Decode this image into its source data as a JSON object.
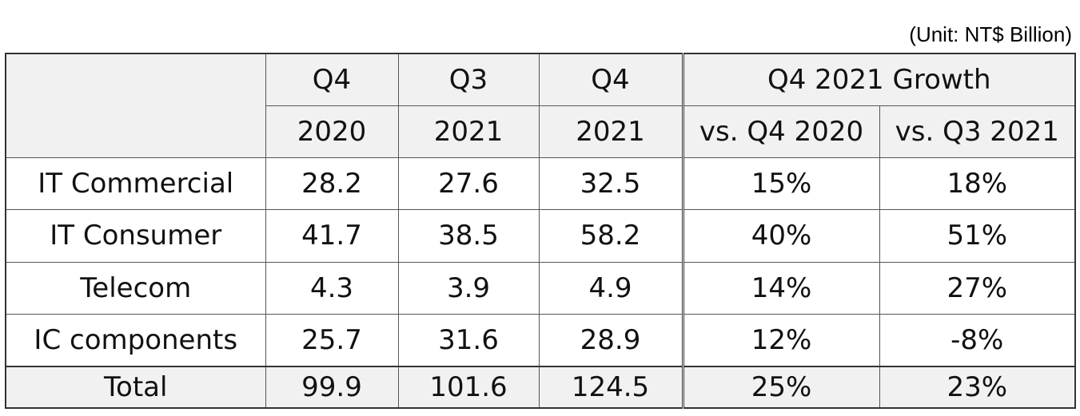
{
  "unit_note": "(Unit: NT$ Billion)",
  "header": {
    "row1": {
      "blank": "",
      "col1": "Q4",
      "col2": "Q3",
      "col3": "Q4",
      "growth": "Q4 2021 Growth"
    },
    "row2": {
      "col1": "2020",
      "col2": "2021",
      "col3": "2021",
      "growth1": "vs. Q4 2020",
      "growth2": "vs. Q3 2021"
    }
  },
  "rows": [
    {
      "label": "IT Commercial",
      "q4_2020": "28.2",
      "q3_2021": "27.6",
      "q4_2021": "32.5",
      "vs_q4_2020": "15%",
      "vs_q3_2021": "18%"
    },
    {
      "label": "IT Consumer",
      "q4_2020": "41.7",
      "q3_2021": "38.5",
      "q4_2021": "58.2",
      "vs_q4_2020": "40%",
      "vs_q3_2021": "51%"
    },
    {
      "label": "Telecom",
      "q4_2020": "4.3",
      "q3_2021": "3.9",
      "q4_2021": "4.9",
      "vs_q4_2020": "14%",
      "vs_q3_2021": "27%"
    },
    {
      "label": "IC components",
      "q4_2020": "25.7",
      "q3_2021": "31.6",
      "q4_2021": "28.9",
      "vs_q4_2020": "12%",
      "vs_q3_2021": "-8%"
    }
  ],
  "total": {
    "label": "Total",
    "q4_2020": "99.9",
    "q3_2021": "101.6",
    "q4_2021": "124.5",
    "vs_q4_2020": "25%",
    "vs_q3_2021": "23%"
  }
}
